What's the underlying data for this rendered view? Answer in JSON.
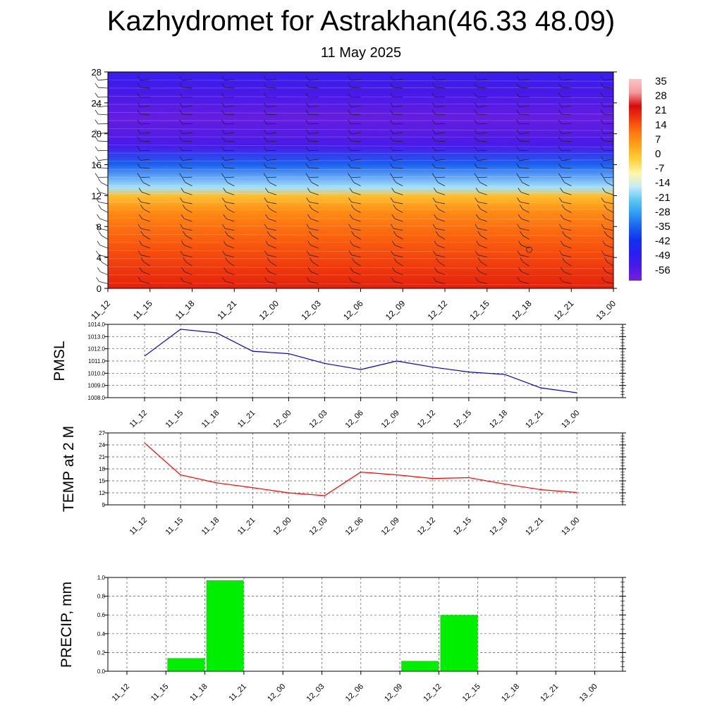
{
  "title": "Kazhydromet for Astrakhan(46.33 48.09)",
  "subtitle": "11 May 2025",
  "chart_data": [
    {
      "type": "heatmap",
      "x_categories": [
        "11_12",
        "11_15",
        "11_18",
        "11_21",
        "12_00",
        "12_03",
        "12_06",
        "12_09",
        "12_12",
        "12_15",
        "12_18",
        "12_21",
        "13_00"
      ],
      "y_ticks": [
        0,
        4,
        8,
        12,
        16,
        20,
        24,
        28
      ],
      "ylim": [
        0,
        28
      ],
      "colorbar": {
        "labels": [
          "35",
          "28",
          "21",
          "14",
          "7",
          "0",
          "-7",
          "-14",
          "-21",
          "-28",
          "-35",
          "-42",
          "-49",
          "-56"
        ],
        "min": -63,
        "max": 42
      },
      "temperature_by_level": [
        {
          "y": 0,
          "value": 25
        },
        {
          "y": 4,
          "value": 20
        },
        {
          "y": 8,
          "value": 15
        },
        {
          "y": 10,
          "value": 11
        },
        {
          "y": 12,
          "value": 3
        },
        {
          "y": 13,
          "value": -16
        },
        {
          "y": 16,
          "value": -35
        },
        {
          "y": 18.5,
          "value": -56
        },
        {
          "y": 22,
          "value": -60
        },
        {
          "y": 25,
          "value": -56
        },
        {
          "y": 28,
          "value": -52
        }
      ],
      "wind_barbs": true
    },
    {
      "type": "line",
      "ylabel": "PMSL",
      "x": [
        "11_12",
        "11_15",
        "11_18",
        "11_21",
        "12_00",
        "12_03",
        "12_06",
        "12_09",
        "12_12",
        "12_15",
        "12_18",
        "12_21",
        "13_00"
      ],
      "series": [
        {
          "values": [
            1011.4,
            1013.6,
            1013.3,
            1011.8,
            1011.6,
            1010.8,
            1010.3,
            1011.0,
            1010.5,
            1010.1,
            1009.9,
            1008.8,
            1008.4
          ],
          "color": "#0000cc"
        }
      ],
      "y_ticks": [
        "1008.0",
        "1009.0",
        "1010.0",
        "1011.0",
        "1012.0",
        "1013.0",
        "1014.0"
      ],
      "ylim": [
        1008,
        1014
      ],
      "grid": true
    },
    {
      "type": "line",
      "ylabel": "TEMP at 2 M",
      "x": [
        "11_12",
        "11_15",
        "11_18",
        "11_21",
        "12_00",
        "12_03",
        "12_06",
        "12_09",
        "12_12",
        "12_15",
        "12_18",
        "12_21",
        "13_00"
      ],
      "series": [
        {
          "values": [
            24.5,
            16.5,
            14.5,
            13.3,
            12.0,
            11.3,
            17.2,
            16.5,
            15.6,
            15.8,
            14.2,
            12.8,
            12.1
          ],
          "color": "#ff0000"
        }
      ],
      "y_ticks": [
        "9",
        "12",
        "15",
        "18",
        "21",
        "24",
        "27"
      ],
      "ylim": [
        9,
        27
      ],
      "grid": true
    },
    {
      "type": "bar",
      "ylabel": "PRECIP, mm",
      "categories": [
        "11_12",
        "11_15",
        "11_18",
        "11_21",
        "12_00",
        "12_03",
        "12_06",
        "12_09",
        "12_12",
        "12_15",
        "12_18",
        "12_21",
        "13_00"
      ],
      "values": [
        0,
        0.14,
        0.97,
        0,
        0,
        0,
        0,
        0.11,
        0.6,
        0,
        0,
        0,
        0
      ],
      "y_ticks": [
        "0.0",
        "0.2",
        "0.4",
        "0.6",
        "0.8",
        "1.0"
      ],
      "ylim": [
        0,
        1.0
      ],
      "color": "#00ee00",
      "grid": true
    }
  ]
}
